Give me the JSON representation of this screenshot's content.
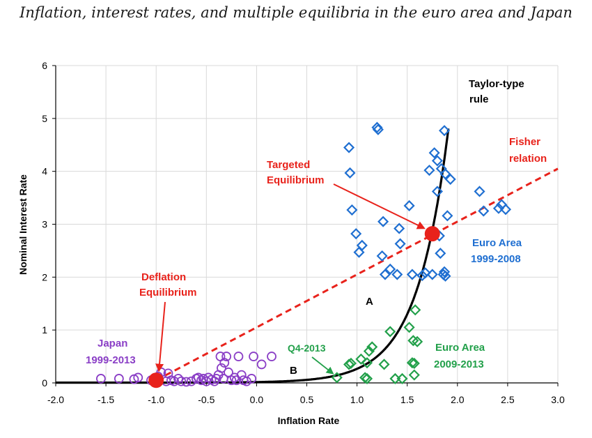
{
  "title": "Inflation, interest rates, and multiple equilibria in the euro area and Japan",
  "chart_data": {
    "type": "scatter",
    "xlabel": "Inflation Rate",
    "ylabel": "Nominal Interest Rate",
    "xlim": [
      -2.0,
      3.0
    ],
    "ylim": [
      0,
      6
    ],
    "xticks": [
      "-2.0",
      "-1.5",
      "-1.0",
      "-0.5",
      "0.0",
      "0.5",
      "1.0",
      "1.5",
      "2.0",
      "2.5",
      "3.0"
    ],
    "yticks": [
      "0",
      "1",
      "2",
      "3",
      "4",
      "5",
      "6"
    ],
    "grid": true,
    "colors": {
      "japan": "#8a3ec6",
      "euro_early": "#1f6fd1",
      "euro_late": "#22a04a",
      "fisher": "#e8221b",
      "taylor": "#000000",
      "equilibrium": "#e8221b"
    },
    "series": [
      {
        "name": "Japan 1999-2013",
        "marker": "circle",
        "points": [
          [
            -1.55,
            0.08
          ],
          [
            -1.37,
            0.08
          ],
          [
            -1.22,
            0.07
          ],
          [
            -1.18,
            0.1
          ],
          [
            -1.05,
            0.05
          ],
          [
            -0.98,
            0.12
          ],
          [
            -0.95,
            0.2
          ],
          [
            -0.9,
            0.03
          ],
          [
            -0.88,
            0.18
          ],
          [
            -0.85,
            0.05
          ],
          [
            -0.82,
            0.03
          ],
          [
            -0.78,
            0.08
          ],
          [
            -0.75,
            0.03
          ],
          [
            -0.7,
            0.02
          ],
          [
            -0.65,
            0.03
          ],
          [
            -0.6,
            0.08
          ],
          [
            -0.58,
            0.1
          ],
          [
            -0.55,
            0.05
          ],
          [
            -0.53,
            0.08
          ],
          [
            -0.5,
            0.03
          ],
          [
            -0.48,
            0.1
          ],
          [
            -0.45,
            0.06
          ],
          [
            -0.42,
            0.03
          ],
          [
            -0.4,
            0.08
          ],
          [
            -0.38,
            0.15
          ],
          [
            -0.36,
            0.5
          ],
          [
            -0.35,
            0.28
          ],
          [
            -0.33,
            0.08
          ],
          [
            -0.32,
            0.38
          ],
          [
            -0.3,
            0.5
          ],
          [
            -0.28,
            0.2
          ],
          [
            -0.25,
            0.05
          ],
          [
            -0.22,
            0.1
          ],
          [
            -0.2,
            0.05
          ],
          [
            -0.18,
            0.5
          ],
          [
            -0.15,
            0.15
          ],
          [
            -0.13,
            0.05
          ],
          [
            -0.1,
            0.03
          ],
          [
            -0.05,
            0.08
          ],
          [
            -0.03,
            0.5
          ],
          [
            0.05,
            0.35
          ],
          [
            0.15,
            0.5
          ]
        ]
      },
      {
        "name": "Euro Area 1999-2008",
        "marker": "diamond",
        "points": [
          [
            0.92,
            4.45
          ],
          [
            0.93,
            3.97
          ],
          [
            0.95,
            3.27
          ],
          [
            0.99,
            2.82
          ],
          [
            1.02,
            2.47
          ],
          [
            1.05,
            2.6
          ],
          [
            1.2,
            4.83
          ],
          [
            1.21,
            4.79
          ],
          [
            1.25,
            2.4
          ],
          [
            1.26,
            3.05
          ],
          [
            1.28,
            2.05
          ],
          [
            1.33,
            2.15
          ],
          [
            1.4,
            2.05
          ],
          [
            1.42,
            2.92
          ],
          [
            1.43,
            2.63
          ],
          [
            1.52,
            3.35
          ],
          [
            1.55,
            2.05
          ],
          [
            1.65,
            2.03
          ],
          [
            1.68,
            2.08
          ],
          [
            1.72,
            4.02
          ],
          [
            1.75,
            2.05
          ],
          [
            1.77,
            4.35
          ],
          [
            1.8,
            3.62
          ],
          [
            1.8,
            4.2
          ],
          [
            1.82,
            2.78
          ],
          [
            1.83,
            2.45
          ],
          [
            1.84,
            4.05
          ],
          [
            1.86,
            2.05
          ],
          [
            1.87,
            2.1
          ],
          [
            1.87,
            4.77
          ],
          [
            1.88,
            2.02
          ],
          [
            1.88,
            3.95
          ],
          [
            1.9,
            3.16
          ],
          [
            1.93,
            3.85
          ],
          [
            2.22,
            3.62
          ],
          [
            2.26,
            3.25
          ],
          [
            2.41,
            3.3
          ],
          [
            2.44,
            3.37
          ],
          [
            2.48,
            3.28
          ]
        ]
      },
      {
        "name": "Euro Area 2009-2013",
        "marker": "diamond",
        "points": [
          [
            0.8,
            0.1
          ],
          [
            0.92,
            0.35
          ],
          [
            0.94,
            0.37
          ],
          [
            1.04,
            0.45
          ],
          [
            1.08,
            0.1
          ],
          [
            1.1,
            0.08
          ],
          [
            1.1,
            0.38
          ],
          [
            1.12,
            0.6
          ],
          [
            1.15,
            0.68
          ],
          [
            1.27,
            0.35
          ],
          [
            1.33,
            0.97
          ],
          [
            1.38,
            0.08
          ],
          [
            1.45,
            0.08
          ],
          [
            1.52,
            1.05
          ],
          [
            1.55,
            0.38
          ],
          [
            1.56,
            0.8
          ],
          [
            1.57,
            0.37
          ],
          [
            1.57,
            0.15
          ],
          [
            1.58,
            1.38
          ],
          [
            1.6,
            0.78
          ]
        ]
      }
    ],
    "curves": [
      {
        "name": "Taylor-type rule",
        "style": "solid"
      },
      {
        "name": "Fisher relation",
        "style": "dashed",
        "from": [
          -1.0,
          0.05
        ],
        "to": [
          3.0,
          4.05
        ]
      }
    ],
    "equilibria": [
      {
        "name": "Deflation Equilibrium",
        "x": -1.0,
        "y": 0.05
      },
      {
        "name": "Targeted Equilibrium",
        "x": 1.75,
        "y": 2.82
      }
    ],
    "annotations": {
      "taylor_line1": "Taylor-type",
      "taylor_line2": "rule",
      "fisher_line1": "Fisher",
      "fisher_line2": "relation",
      "targeted_line1": "Targeted",
      "targeted_line2": "Equilibrium",
      "deflation_line1": "Deflation",
      "deflation_line2": "Equilibrium",
      "euro_early_line1": "Euro Area",
      "euro_early_line2": "1999-2008",
      "euro_late_line1": "Euro Area",
      "euro_late_line2": "2009-2013",
      "japan_line1": "Japan",
      "japan_line2": "1999-2013",
      "q4": "Q4-2013",
      "region_a": "A",
      "region_b": "B"
    }
  }
}
